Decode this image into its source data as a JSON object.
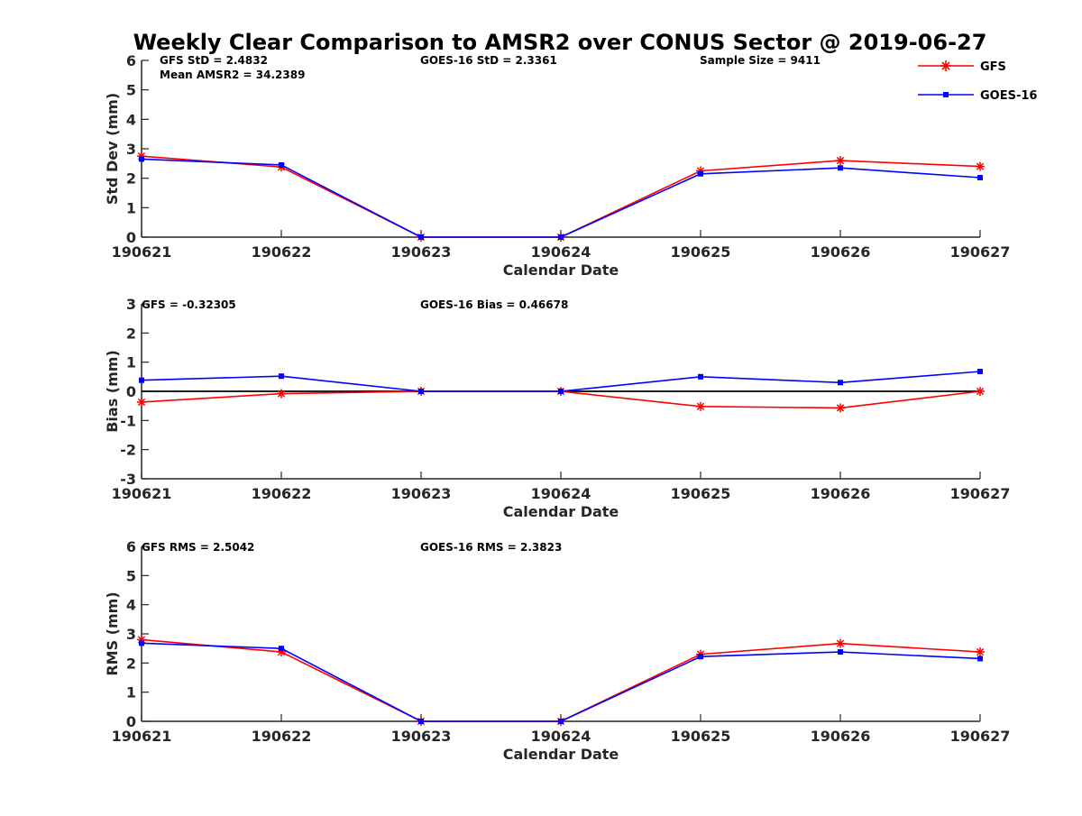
{
  "title": "Weekly Clear Comparison to AMSR2 over CONUS Sector @ 2019-06-27",
  "legend": {
    "placement": "top-right",
    "entries": [
      {
        "label": "GFS",
        "color": "#ff0000",
        "marker": "asterisk"
      },
      {
        "label": "GOES-16",
        "color": "#0000ff",
        "marker": "square"
      }
    ]
  },
  "chart_data": [
    {
      "type": "line",
      "xlabel": "Calendar Date",
      "ylabel": "Std Dev (mm)",
      "ylim": [
        0,
        6
      ],
      "yticks": [
        "0",
        "1",
        "2",
        "3",
        "4",
        "5",
        "6"
      ],
      "categories": [
        "190621",
        "190622",
        "190623",
        "190624",
        "190625",
        "190626",
        "190627"
      ],
      "annotations": [
        {
          "text": "GFS StD = 2.4832"
        },
        {
          "text": "Mean AMSR2 = 34.2389"
        },
        {
          "text": "GOES-16 StD = 2.3361"
        },
        {
          "text": "Sample Size = 9411"
        }
      ],
      "zero_line": false,
      "series": [
        {
          "name": "GFS",
          "color": "#ff0000",
          "marker": "asterisk",
          "values": [
            2.75,
            2.38,
            0,
            0,
            2.25,
            2.6,
            2.4
          ]
        },
        {
          "name": "GOES-16",
          "color": "#0000ff",
          "marker": "square",
          "values": [
            2.65,
            2.45,
            0,
            0,
            2.15,
            2.35,
            2.02
          ]
        }
      ]
    },
    {
      "type": "line",
      "xlabel": "Calendar Date",
      "ylabel": "Bias (mm)",
      "ylim": [
        -3,
        3
      ],
      "yticks": [
        "-3",
        "-2",
        "-1",
        "0",
        "1",
        "2",
        "3"
      ],
      "categories": [
        "190621",
        "190622",
        "190623",
        "190624",
        "190625",
        "190626",
        "190627"
      ],
      "annotations": [
        {
          "text": "GFS = -0.32305"
        },
        {
          "text": "GOES-16 Bias  = 0.46678"
        }
      ],
      "zero_line": true,
      "series": [
        {
          "name": "GFS",
          "color": "#ff0000",
          "marker": "asterisk",
          "values": [
            -0.37,
            -0.08,
            0,
            0,
            -0.52,
            -0.57,
            0
          ]
        },
        {
          "name": "GOES-16",
          "color": "#0000ff",
          "marker": "square",
          "values": [
            0.38,
            0.52,
            0,
            0,
            0.5,
            0.3,
            0.68
          ]
        }
      ]
    },
    {
      "type": "line",
      "xlabel": "Calendar Date",
      "ylabel": "RMS (mm)",
      "ylim": [
        0,
        6
      ],
      "yticks": [
        "0",
        "1",
        "2",
        "3",
        "4",
        "5",
        "6"
      ],
      "categories": [
        "190621",
        "190622",
        "190623",
        "190624",
        "190625",
        "190626",
        "190627"
      ],
      "annotations": [
        {
          "text": "GFS RMS = 2.5042"
        },
        {
          "text": "GOES-16 RMS = 2.3823"
        }
      ],
      "zero_line": false,
      "series": [
        {
          "name": "GFS",
          "color": "#ff0000",
          "marker": "asterisk",
          "values": [
            2.8,
            2.38,
            0,
            0,
            2.3,
            2.67,
            2.38
          ]
        },
        {
          "name": "GOES-16",
          "color": "#0000ff",
          "marker": "square",
          "values": [
            2.68,
            2.5,
            0,
            0,
            2.22,
            2.38,
            2.15
          ]
        }
      ]
    }
  ]
}
